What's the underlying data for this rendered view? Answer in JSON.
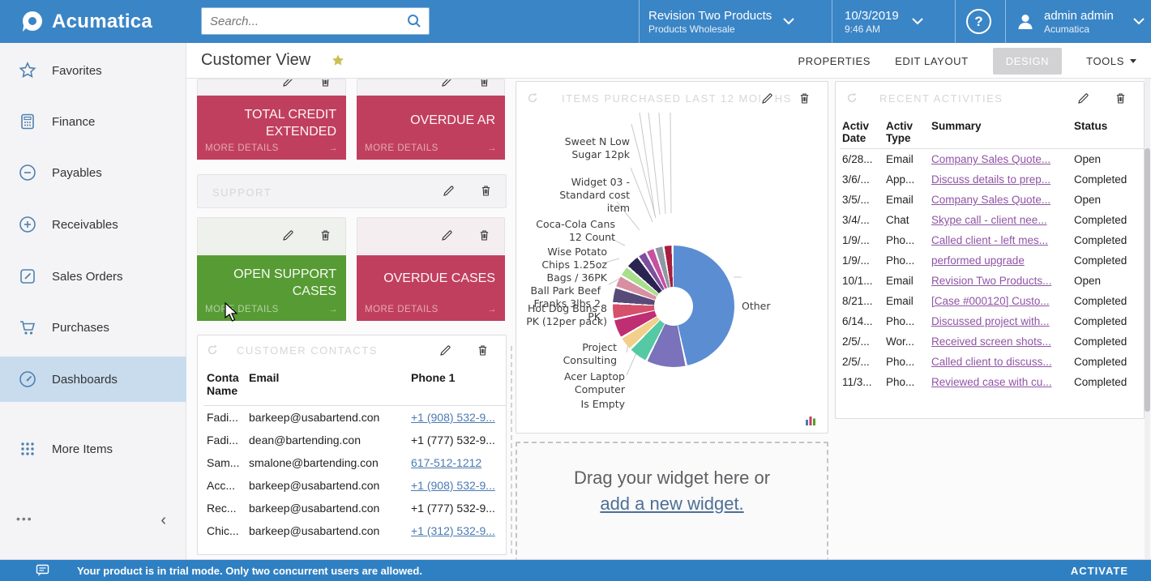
{
  "topbar": {
    "brand": "Acumatica",
    "search_placeholder": "Search...",
    "company": {
      "name": "Revision Two Products",
      "branch": "Products Wholesale"
    },
    "clock": {
      "date": "10/3/2019",
      "time": "9:46 AM"
    },
    "user": {
      "name": "admin admin",
      "tenant": "Acumatica"
    }
  },
  "sidebar": {
    "items": [
      {
        "label": "Favorites"
      },
      {
        "label": "Finance"
      },
      {
        "label": "Payables"
      },
      {
        "label": "Receivables"
      },
      {
        "label": "Sales Orders"
      },
      {
        "label": "Purchases"
      },
      {
        "label": "Dashboards"
      },
      {
        "label": "More Items"
      }
    ],
    "footer_more": "•••",
    "collapse": "‹"
  },
  "page": {
    "title": "Customer View"
  },
  "menubar": {
    "properties": "PROPERTIES",
    "edit_layout": "EDIT LAYOUT",
    "design": "DESIGN",
    "tools": "TOOLS"
  },
  "tiles": {
    "more_label": "MORE DETAILS",
    "total_credit": "TOTAL CREDIT EXTENDED",
    "overdue_ar": "OVERDUE AR",
    "support_ghost": "SUPPORT",
    "open_support": "OPEN SUPPORT CASES",
    "overdue_cases": "OVERDUE CASES"
  },
  "contacts": {
    "ghost_title": "CUSTOMER CONTACTS",
    "headers": {
      "name": "Conta Name",
      "email": "Email",
      "phone": "Phone 1"
    },
    "rows": [
      {
        "name": "Fadi...",
        "email": "barkeep@usabartend.con",
        "phone": "+1 (908) 532-9...",
        "phone_link": true
      },
      {
        "name": "Fadi...",
        "email": "dean@bartending.con",
        "phone": "+1 (777) 532-9...",
        "phone_link": false
      },
      {
        "name": "Sam...",
        "email": "smalone@bartending.con",
        "phone": "617-512-1212",
        "phone_link": true
      },
      {
        "name": "Acc...",
        "email": "barkeep@usabartend.con",
        "phone": "+1 (908) 532-9...",
        "phone_link": true
      },
      {
        "name": "Rec...",
        "email": "barkeep@usabartend.con",
        "phone": "+1 (777) 532-9...",
        "phone_link": false
      },
      {
        "name": "Chic...",
        "email": "barkeep@usabartend.con",
        "phone": "+1 (312) 532-9...",
        "phone_link": true
      }
    ]
  },
  "items_widget": {
    "ghost_title": "ITEMS PURCHASED LAST 12 MONTHS"
  },
  "chart_data": {
    "type": "pie",
    "title": "ITEMS PURCHASED LAST 12 MONTHS",
    "donut": true,
    "legend_position": "none",
    "labels_style": "callout",
    "slices": [
      {
        "label": "Other",
        "value": 50,
        "color": "#5b8dd3"
      },
      {
        "label": "Is Empty",
        "value": 11,
        "color": "#7a72ba"
      },
      {
        "label": "Acer Laptop Computer",
        "value": 5,
        "color": "#55c9a4"
      },
      {
        "label": "Project Consulting",
        "value": 3.5,
        "color": "#f2cf8a"
      },
      {
        "label": "Hot Dog Buns 8 PK (12per pack)",
        "value": 5,
        "color": "#bf2e72"
      },
      {
        "label": "Ball Park Beef Franks 3lbs 2 PK",
        "value": 4,
        "color": "#d4506b"
      },
      {
        "label": "Wise Potato Chips 1.25oz Bags / 36PK",
        "value": 4,
        "color": "#584a78"
      },
      {
        "label": "Coca-Cola Cans 12 Count",
        "value": 3,
        "color": "#d88fa2"
      },
      {
        "label": "Widget 03 - Standard cost item",
        "value": 2.5,
        "color": "#a9de8c"
      },
      {
        "label": "Sweet N Low Sugar 12pk",
        "value": 3.5,
        "color": "#2b2352"
      },
      {
        "label": "",
        "value": 2,
        "color": "#7e4f9e"
      },
      {
        "label": "",
        "value": 2,
        "color": "#c750a0"
      },
      {
        "label": "",
        "value": 2,
        "color": "#8f98a3"
      },
      {
        "label": "",
        "value": 2,
        "color": "#a61f3f"
      }
    ],
    "callouts": [
      "Sweet N Low Sugar 12pk",
      "Widget 03 - Standard cost item",
      "Coca-Cola Cans 12 Count",
      "Wise Potato Chips 1.25oz Bags / 36PK",
      "Ball Park Beef Franks 3lbs 2 PK",
      "Hot Dog Buns 8 PK (12per pack)",
      "Project Consulting",
      "Acer Laptop Computer",
      "Is Empty",
      "Other"
    ]
  },
  "activities": {
    "ghost_title": "RECENT ACTIVITIES",
    "headers": {
      "date": "Activ Date",
      "type": "Activ Type",
      "summary": "Summary",
      "status": "Status"
    },
    "rows": [
      {
        "date": "6/28...",
        "type": "Email",
        "summary": "Company Sales Quote...",
        "status": "Open"
      },
      {
        "date": "3/6/...",
        "type": "App...",
        "summary": "Discuss details to prep...",
        "status": "Completed"
      },
      {
        "date": "3/5/...",
        "type": "Email",
        "summary": "Company Sales Quote...",
        "status": "Open"
      },
      {
        "date": "3/4/...",
        "type": "Chat",
        "summary": "Skype call - client nee...",
        "status": "Completed"
      },
      {
        "date": "1/9/...",
        "type": "Pho...",
        "summary": "Called client - left mes...",
        "status": "Completed"
      },
      {
        "date": "1/9/...",
        "type": "Pho...",
        "summary": "performed upgrade",
        "status": "Completed"
      },
      {
        "date": "10/1...",
        "type": "Email",
        "summary": "Revision Two Products...",
        "status": "Open"
      },
      {
        "date": "8/21...",
        "type": "Email",
        "summary": "[Case #000120] Custo...",
        "status": "Completed"
      },
      {
        "date": "6/14...",
        "type": "Pho...",
        "summary": "Discussed project with...",
        "status": "Completed"
      },
      {
        "date": "2/5/...",
        "type": "Wor...",
        "summary": "Received screen shots...",
        "status": "Completed"
      },
      {
        "date": "2/5/...",
        "type": "Pho...",
        "summary": "Called client to discuss...",
        "status": "Completed"
      },
      {
        "date": "11/3...",
        "type": "Pho...",
        "summary": "Reviewed case with cu...",
        "status": "Completed"
      }
    ]
  },
  "placeholder": {
    "text": "Drag your widget here or",
    "link": "add a new widget."
  },
  "trialbar": {
    "message": "Your product is in trial mode. Only two concurrent users are allowed.",
    "action": "ACTIVATE"
  },
  "colors": {
    "topbar": "#3a85c6",
    "tile_red": "#c13f5e",
    "tile_green": "#579b34",
    "phone_link": "#4a7ab2",
    "summary_link": "#9054a6",
    "selected_nav": "#c9dcee"
  }
}
